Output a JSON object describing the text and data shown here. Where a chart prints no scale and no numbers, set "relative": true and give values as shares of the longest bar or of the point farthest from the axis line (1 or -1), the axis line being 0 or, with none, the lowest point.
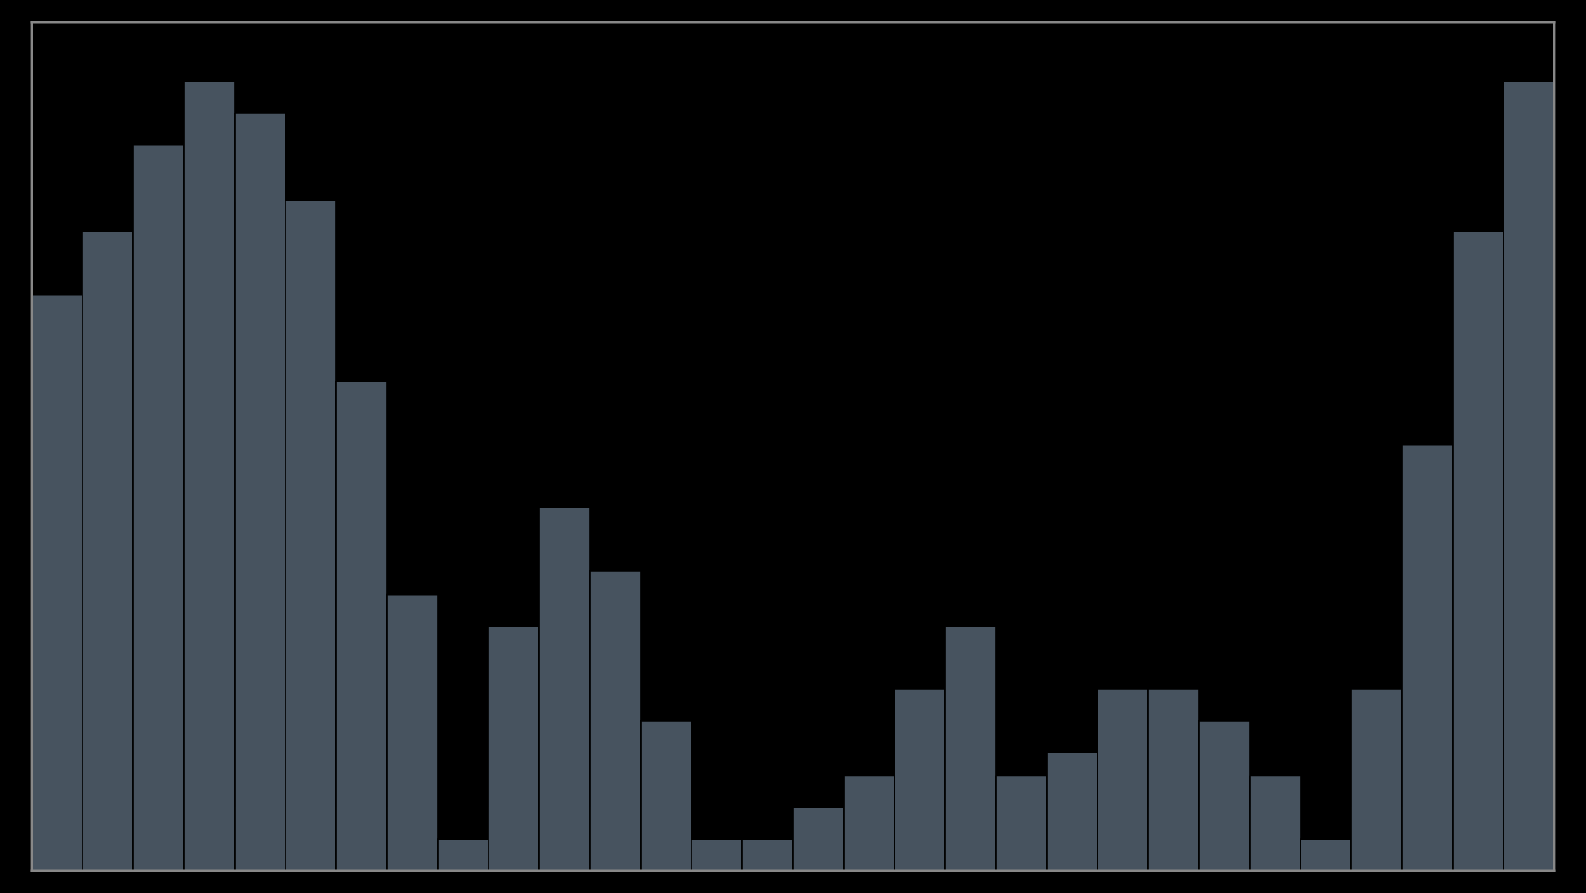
{
  "chart_data": {
    "type": "bar",
    "relative": true,
    "categories": [
      null,
      null,
      null,
      null,
      null,
      null,
      null,
      null,
      null,
      null,
      null,
      null,
      null,
      null,
      null,
      null,
      null,
      null,
      null,
      null,
      null,
      null,
      null,
      null,
      null,
      null,
      null,
      null,
      null,
      null
    ],
    "values": [
      0.73,
      0.81,
      0.92,
      1,
      0.96,
      0.85,
      0.62,
      0.35,
      0.04,
      0.31,
      0.46,
      0.38,
      0.19,
      0.04,
      0.04,
      0.08,
      0.12,
      0.23,
      0.31,
      0.12,
      0.15,
      0.23,
      0.23,
      0.19,
      0.12,
      0.04,
      0.23,
      0.54,
      0.81,
      1
    ],
    "color": "#47535f"
  }
}
